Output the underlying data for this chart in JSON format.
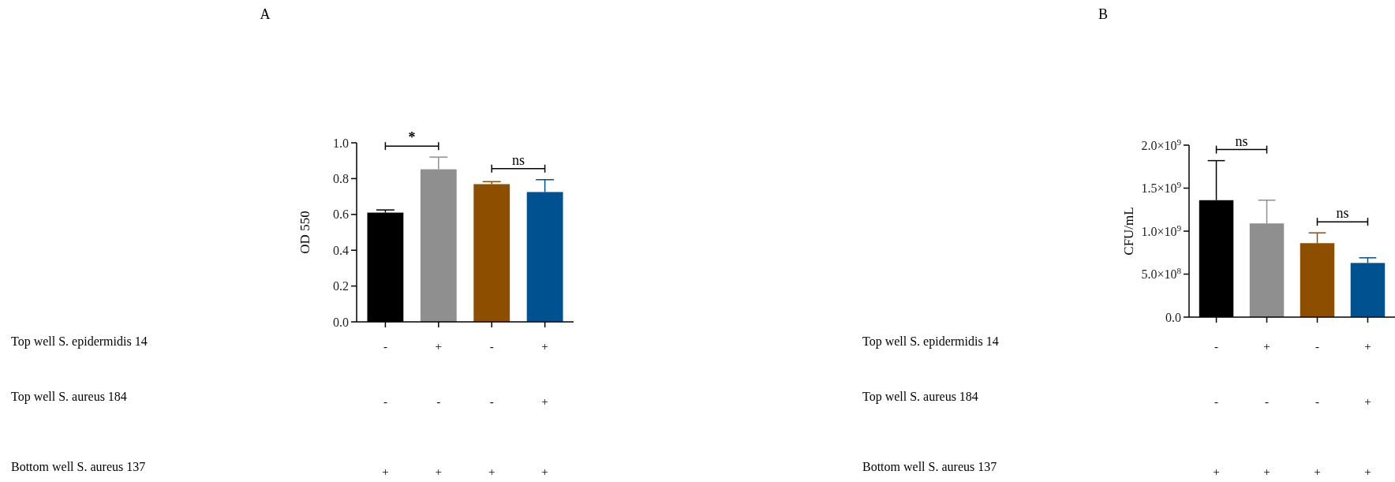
{
  "chart_data": [
    {
      "type": "bar",
      "title": "A",
      "ylabel": "OD 550",
      "xlabel": "Top well S. epidermidis 14\nTop well S. aureus 184\nBottom well S. aureus 137",
      "categories": [
        "-\n-\n+",
        "+\n-\n+",
        "-\n-\n+",
        "+\n+\n+"
      ],
      "values": [
        0.61,
        0.852,
        0.769,
        0.725
      ],
      "errors": [
        [
          0.61,
          0.625
        ],
        [
          0.852,
          0.92
        ],
        [
          0.769,
          0.783
        ],
        [
          0.725,
          0.794
        ]
      ],
      "colors": [
        "#000000",
        "#8f8f8f",
        "#8e4e00",
        "#00518f"
      ],
      "ylim": [
        0,
        1
      ],
      "yticks": [
        {
          "value": 0,
          "label": "0.0"
        },
        0.2,
        0.4,
        0.6,
        0.8,
        {
          "value": 1,
          "label": "1.0"
        }
      ],
      "annotations": [
        "*",
        "ns"
      ]
    },
    {
      "type": "bar",
      "title": "B",
      "ylabel": "CFU/mL",
      "xlabel": "Top well S. epidermidis 14\nTop well S. aureus 184\nBottom well S. aureus 137",
      "categories": [
        "-\n-\n+",
        "+\n-\n+",
        "-\n-\n+",
        "+\n+\n+"
      ],
      "values": [
        1360000000,
        1090000000,
        860000000,
        630000000
      ],
      "errors": [
        [
          1360000000,
          1820000000
        ],
        [
          1090000000,
          1360000000
        ],
        [
          860000000,
          980000000
        ],
        [
          630000000,
          690000000
        ]
      ],
      "colors": [
        "#000000",
        "#8f8f8f",
        "#8e4e00",
        "#00518f"
      ],
      "ylim": [
        0,
        2000000000
      ],
      "yticks": [
        {
          "value": 0,
          "label": "0.0"
        },
        {
          "value": 500000000,
          "label": "5.0×10$^{8}$"
        },
        {
          "value": 1000000000,
          "label": "1.0×10$^{9}$"
        },
        {
          "value": 1500000000,
          "label": "1.5×10$^{9}$"
        },
        {
          "value": 2000000000,
          "label": "2.0×10$^{9}$"
        }
      ],
      "annotations": [
        "ns",
        "ns"
      ]
    }
  ]
}
